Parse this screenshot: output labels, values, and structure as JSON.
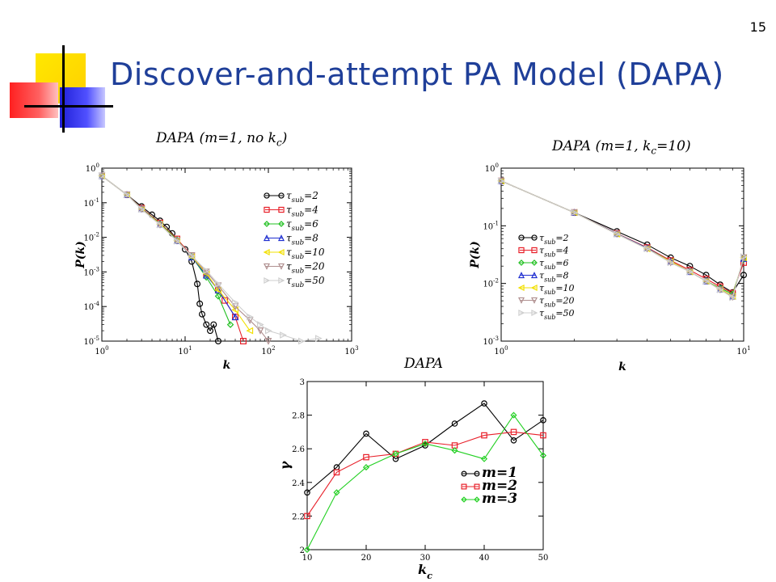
{
  "slide": {
    "number": "15",
    "title": "Discover-and-attempt PA Model (DAPA)"
  },
  "chart_data": [
    {
      "type": "line",
      "title_pre": "DAPA (m=1, no k",
      "title_sub": "c",
      "title_post": ")",
      "xlabel": "k",
      "ylabel": "P(k)",
      "xscale": "log",
      "yscale": "log",
      "xlim": [
        1,
        1000
      ],
      "ylim": [
        1e-05,
        1
      ],
      "xticks": [
        {
          "v": 1,
          "base": "10",
          "exp": "0"
        },
        {
          "v": 10,
          "base": "10",
          "exp": "1"
        },
        {
          "v": 100,
          "base": "10",
          "exp": "2"
        },
        {
          "v": 1000,
          "base": "10",
          "exp": "3"
        }
      ],
      "yticks": [
        {
          "v": 1e-05,
          "base": "10",
          "exp": "-5"
        },
        {
          "v": 0.0001,
          "base": "10",
          "exp": "-4"
        },
        {
          "v": 0.001,
          "base": "10",
          "exp": "-3"
        },
        {
          "v": 0.01,
          "base": "10",
          "exp": "-2"
        },
        {
          "v": 0.1,
          "base": "10",
          "exp": "-1"
        },
        {
          "v": 1,
          "base": "10",
          "exp": "0"
        }
      ],
      "legend_position": "right",
      "series": [
        {
          "name": "τsub=2",
          "label": "τ",
          "sub": "sub",
          "tail": "=2",
          "color": "#000000",
          "marker": "circle",
          "x": [
            1,
            2,
            3,
            4,
            5,
            6,
            7,
            8,
            10,
            12,
            14,
            15,
            16,
            18,
            20,
            22,
            25
          ],
          "y": [
            0.6,
            0.17,
            0.078,
            0.045,
            0.03,
            0.02,
            0.013,
            0.008,
            0.0045,
            0.002,
            0.00045,
            0.00012,
            6e-05,
            3e-05,
            2e-05,
            3e-05,
            1e-05
          ]
        },
        {
          "name": "τsub=4",
          "label": "τ",
          "sub": "sub",
          "tail": "=4",
          "color": "#e8202a",
          "marker": "square",
          "x": [
            1,
            2,
            3,
            5,
            8,
            12,
            18,
            25,
            30,
            40,
            50
          ],
          "y": [
            0.6,
            0.17,
            0.07,
            0.026,
            0.009,
            0.003,
            0.0009,
            0.0003,
            0.00015,
            5e-05,
            1e-05
          ]
        },
        {
          "name": "τsub=6",
          "label": "τ",
          "sub": "sub",
          "tail": "=6",
          "color": "#22c022",
          "marker": "diamond",
          "x": [
            1,
            2,
            3,
            5,
            8,
            12,
            18,
            25,
            35
          ],
          "y": [
            0.6,
            0.17,
            0.068,
            0.025,
            0.0085,
            0.0028,
            0.0007,
            0.0002,
            3e-05
          ]
        },
        {
          "name": "τsub=8",
          "label": "τ",
          "sub": "sub",
          "tail": "=8",
          "color": "#1f2fd0",
          "marker": "triangle",
          "x": [
            1,
            2,
            3,
            5,
            8,
            12,
            18,
            25,
            40
          ],
          "y": [
            0.6,
            0.17,
            0.067,
            0.024,
            0.008,
            0.0027,
            0.0008,
            0.0003,
            5e-05
          ]
        },
        {
          "name": "τsub=10",
          "label": "τ",
          "sub": "sub",
          "tail": "=10",
          "color": "#f2e000",
          "marker": "tri-left",
          "x": [
            1,
            2,
            3,
            5,
            8,
            12,
            18,
            25,
            40,
            60
          ],
          "y": [
            0.6,
            0.17,
            0.066,
            0.024,
            0.008,
            0.0028,
            0.0009,
            0.0003,
            8e-05,
            2e-05
          ]
        },
        {
          "name": "τsub=20",
          "label": "τ",
          "sub": "sub",
          "tail": "=20",
          "color": "#b09090",
          "marker": "tri-down",
          "x": [
            1,
            2,
            3,
            5,
            8,
            12,
            18,
            25,
            40,
            60,
            80,
            100
          ],
          "y": [
            0.6,
            0.17,
            0.065,
            0.023,
            0.008,
            0.003,
            0.001,
            0.0004,
            0.0001,
            4e-05,
            2e-05,
            1e-05
          ]
        },
        {
          "name": "τsub=50",
          "label": "τ",
          "sub": "sub",
          "tail": "=50",
          "color": "#cfcfcf",
          "marker": "tri-right",
          "x": [
            1,
            2,
            3,
            5,
            8,
            12,
            18,
            25,
            40,
            60,
            80,
            100,
            150,
            250,
            400
          ],
          "y": [
            0.6,
            0.17,
            0.065,
            0.023,
            0.0078,
            0.0029,
            0.0011,
            0.00045,
            0.00013,
            5e-05,
            3e-05,
            2e-05,
            1.5e-05,
            1e-05,
            1.2e-05
          ]
        }
      ]
    },
    {
      "type": "line",
      "title_pre": "DAPA (m=1, k",
      "title_sub": "c",
      "title_post": "=10)",
      "xlabel": "k",
      "ylabel": "P(k)",
      "xscale": "log",
      "yscale": "log",
      "xlim": [
        1,
        10
      ],
      "ylim": [
        0.001,
        1
      ],
      "xticks": [
        {
          "v": 1,
          "base": "10",
          "exp": "0"
        },
        {
          "v": 10,
          "base": "10",
          "exp": "1"
        }
      ],
      "yticks": [
        {
          "v": 0.001,
          "base": "10",
          "exp": "-3"
        },
        {
          "v": 0.01,
          "base": "10",
          "exp": "-2"
        },
        {
          "v": 0.1,
          "base": "10",
          "exp": "-1"
        },
        {
          "v": 1,
          "base": "10",
          "exp": "0"
        }
      ],
      "legend_position": "left",
      "series": [
        {
          "name": "τsub=2",
          "label": "τ",
          "sub": "sub",
          "tail": "=2",
          "color": "#000000",
          "marker": "circle",
          "x": [
            1,
            2,
            3,
            4,
            5,
            6,
            7,
            8,
            9,
            10
          ],
          "y": [
            0.6,
            0.17,
            0.08,
            0.047,
            0.028,
            0.02,
            0.014,
            0.0095,
            0.007,
            0.014
          ]
        },
        {
          "name": "τsub=4",
          "label": "τ",
          "sub": "sub",
          "tail": "=4",
          "color": "#e8202a",
          "marker": "square",
          "x": [
            1,
            2,
            3,
            4,
            5,
            6,
            7,
            8,
            9,
            10
          ],
          "y": [
            0.6,
            0.17,
            0.074,
            0.042,
            0.025,
            0.017,
            0.012,
            0.0088,
            0.0068,
            0.023
          ]
        },
        {
          "name": "τsub=6",
          "label": "τ",
          "sub": "sub",
          "tail": "=6",
          "color": "#22c022",
          "marker": "diamond",
          "x": [
            1,
            2,
            3,
            4,
            5,
            6,
            7,
            8,
            9,
            10
          ],
          "y": [
            0.6,
            0.17,
            0.073,
            0.041,
            0.024,
            0.016,
            0.011,
            0.0083,
            0.0065,
            0.026
          ]
        },
        {
          "name": "τsub=8",
          "label": "τ",
          "sub": "sub",
          "tail": "=8",
          "color": "#1f2fd0",
          "marker": "triangle",
          "x": [
            1,
            2,
            3,
            4,
            5,
            6,
            7,
            8,
            9,
            10
          ],
          "y": [
            0.6,
            0.17,
            0.073,
            0.041,
            0.024,
            0.016,
            0.011,
            0.008,
            0.006,
            0.027
          ]
        },
        {
          "name": "τsub=10",
          "label": "τ",
          "sub": "sub",
          "tail": "=10",
          "color": "#f2e000",
          "marker": "tri-left",
          "x": [
            1,
            2,
            3,
            4,
            5,
            6,
            7,
            8,
            9,
            10
          ],
          "y": [
            0.6,
            0.17,
            0.072,
            0.04,
            0.024,
            0.016,
            0.011,
            0.008,
            0.006,
            0.028
          ]
        },
        {
          "name": "τsub=20",
          "label": "τ",
          "sub": "sub",
          "tail": "=20",
          "color": "#b09090",
          "marker": "tri-down",
          "x": [
            1,
            2,
            3,
            4,
            5,
            6,
            7,
            8,
            9,
            10
          ],
          "y": [
            0.6,
            0.17,
            0.072,
            0.04,
            0.023,
            0.016,
            0.011,
            0.0078,
            0.0058,
            0.028
          ]
        },
        {
          "name": "τsub=50",
          "label": "τ",
          "sub": "sub",
          "tail": "=50",
          "color": "#cfcfcf",
          "marker": "tri-right",
          "x": [
            1,
            2,
            3,
            4,
            5,
            6,
            7,
            8,
            9,
            10
          ],
          "y": [
            0.6,
            0.17,
            0.072,
            0.04,
            0.023,
            0.016,
            0.011,
            0.0078,
            0.0057,
            0.029
          ]
        }
      ]
    },
    {
      "type": "line",
      "title": "DAPA",
      "xlabel_pre": "k",
      "xlabel_sub": "c",
      "ylabel": "γ",
      "xscale": "linear",
      "yscale": "linear",
      "xlim": [
        10,
        50
      ],
      "ylim": [
        2,
        3
      ],
      "xticks": [
        {
          "v": 10,
          "label": "10"
        },
        {
          "v": 20,
          "label": "20"
        },
        {
          "v": 30,
          "label": "30"
        },
        {
          "v": 40,
          "label": "40"
        },
        {
          "v": 50,
          "label": "50"
        }
      ],
      "yticks": [
        {
          "v": 2,
          "label": "2"
        },
        {
          "v": 2.2,
          "label": "2.2"
        },
        {
          "v": 2.4,
          "label": "2.4"
        },
        {
          "v": 2.6,
          "label": "2.6"
        },
        {
          "v": 2.8,
          "label": "2.8"
        },
        {
          "v": 3,
          "label": "3"
        }
      ],
      "legend_position": "bottom-right",
      "series": [
        {
          "name": "m=1",
          "label": "m=1",
          "color": "#000000",
          "marker": "circle",
          "x": [
            10,
            15,
            20,
            25,
            30,
            35,
            40,
            45,
            50
          ],
          "y": [
            2.34,
            2.49,
            2.69,
            2.54,
            2.62,
            2.75,
            2.87,
            2.65,
            2.77
          ]
        },
        {
          "name": "m=2",
          "label": "m=2",
          "color": "#e8202a",
          "marker": "square",
          "x": [
            10,
            15,
            20,
            25,
            30,
            35,
            40,
            45,
            50
          ],
          "y": [
            2.2,
            2.46,
            2.55,
            2.57,
            2.64,
            2.62,
            2.68,
            2.7,
            2.68
          ]
        },
        {
          "name": "m=3",
          "label": "m=3",
          "color": "#22d022",
          "marker": "diamond",
          "x": [
            10,
            15,
            20,
            25,
            30,
            35,
            40,
            45,
            50
          ],
          "y": [
            2.0,
            2.34,
            2.49,
            2.57,
            2.63,
            2.59,
            2.54,
            2.8,
            2.56
          ]
        }
      ]
    }
  ]
}
